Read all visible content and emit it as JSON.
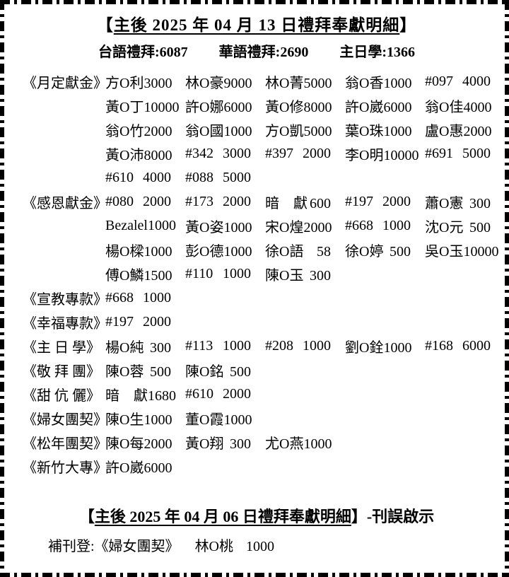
{
  "report": {
    "title": {
      "open": "【",
      "text": "主後 2025 年 04 月 13 日禮拜奉獻明細",
      "close": "】"
    },
    "stats": [
      {
        "label": "台語禮拜",
        "value": "6087"
      },
      {
        "label": "華語禮拜",
        "value": "2690"
      },
      {
        "label": "主日學",
        "value": "1366"
      }
    ],
    "rows": [
      {
        "label": "《月定獻金》",
        "entries": [
          {
            "name": "方O利",
            "amount": "3000"
          },
          {
            "name": "林O豪",
            "amount": "9000"
          },
          {
            "name": "林O菁",
            "amount": "5000"
          },
          {
            "name": "翁O香",
            "amount": "1000"
          },
          {
            "name": "#097",
            "amount": "4000"
          }
        ]
      },
      {
        "label": "",
        "entries": [
          {
            "name": "黃O丁",
            "amount": "10000"
          },
          {
            "name": "許O娜",
            "amount": "6000"
          },
          {
            "name": "黃O修",
            "amount": "8000"
          },
          {
            "name": "許O崴",
            "amount": "6000"
          },
          {
            "name": "翁O佳",
            "amount": "4000"
          }
        ]
      },
      {
        "label": "",
        "entries": [
          {
            "name": "翁O竹",
            "amount": "2000"
          },
          {
            "name": "翁O國",
            "amount": "1000"
          },
          {
            "name": "方O凱",
            "amount": "5000"
          },
          {
            "name": "葉O珠",
            "amount": "1000"
          },
          {
            "name": "盧O惠",
            "amount": "2000"
          }
        ]
      },
      {
        "label": "",
        "entries": [
          {
            "name": "黃O沛",
            "amount": "8000"
          },
          {
            "name": "#342",
            "amount": "3000"
          },
          {
            "name": "#397",
            "amount": "2000"
          },
          {
            "name": "李O明",
            "amount": "10000"
          },
          {
            "name": "#691",
            "amount": "5000"
          }
        ]
      },
      {
        "label": "",
        "entries": [
          {
            "name": "#610",
            "amount": "4000"
          },
          {
            "name": "#088",
            "amount": "5000"
          }
        ]
      },
      {
        "label": "《感恩獻金》",
        "entries": [
          {
            "name": "#080",
            "amount": "2000"
          },
          {
            "name": "#173",
            "amount": "2000"
          },
          {
            "name": "暗　獻",
            "amount": "600"
          },
          {
            "name": "#197",
            "amount": "2000"
          },
          {
            "name": "蕭O憲",
            "amount": "300"
          }
        ]
      },
      {
        "label": "",
        "entries": [
          {
            "name": "Bezalel",
            "amount": "1000"
          },
          {
            "name": "黃O姿",
            "amount": "1000"
          },
          {
            "name": "宋O煌",
            "amount": "2000"
          },
          {
            "name": "#668",
            "amount": "1000"
          },
          {
            "name": "沈O元",
            "amount": "500"
          }
        ]
      },
      {
        "label": "",
        "entries": [
          {
            "name": "楊O樑",
            "amount": "1000"
          },
          {
            "name": "彭O德",
            "amount": "1000"
          },
          {
            "name": "徐O語",
            "amount": "58"
          },
          {
            "name": "徐O婷",
            "amount": "500"
          },
          {
            "name": "吳O玉",
            "amount": "10000"
          }
        ]
      },
      {
        "label": "",
        "entries": [
          {
            "name": "傅O鱗",
            "amount": "1500"
          },
          {
            "name": "#110",
            "amount": "1000"
          },
          {
            "name": "陳O玉",
            "amount": "300"
          }
        ]
      },
      {
        "label": "《宣教專款》",
        "entries": [
          {
            "name": "#668",
            "amount": "1000"
          }
        ]
      },
      {
        "label": "《幸福專款》",
        "entries": [
          {
            "name": "#197",
            "amount": "2000"
          }
        ]
      },
      {
        "label": "《主 日 學》",
        "entries": [
          {
            "name": "楊O純",
            "amount": "300"
          },
          {
            "name": "#113",
            "amount": "1000"
          },
          {
            "name": "#208",
            "amount": "1000"
          },
          {
            "name": "劉O銓",
            "amount": "1000"
          },
          {
            "name": "#168",
            "amount": "6000"
          }
        ]
      },
      {
        "label": "《敬 拜 團》",
        "entries": [
          {
            "name": "陳O蓉",
            "amount": "500"
          },
          {
            "name": "陳O銘",
            "amount": "500"
          }
        ]
      },
      {
        "label": "《甜 伉 儷》",
        "entries": [
          {
            "name": "暗　獻",
            "amount": "1680"
          },
          {
            "name": "#610",
            "amount": "2000"
          }
        ]
      },
      {
        "label": "《婦女團契》",
        "entries": [
          {
            "name": "陳O生",
            "amount": "1000"
          },
          {
            "name": "董O霞",
            "amount": "1000"
          }
        ]
      },
      {
        "label": "《松年團契》",
        "entries": [
          {
            "name": "陳O每",
            "amount": "2000"
          },
          {
            "name": "黃O翔",
            "amount": "300"
          },
          {
            "name": "尤O燕",
            "amount": "1000"
          }
        ]
      },
      {
        "label": "《新竹大專》",
        "entries": [
          {
            "name": "許O崴",
            "amount": "6000"
          }
        ]
      }
    ]
  },
  "erratum": {
    "title": {
      "open": "【",
      "text": "主後 2025 年 04 月 06 日禮拜奉獻明細",
      "close": "】",
      "suffix": "-刊誤啟示"
    },
    "entry": {
      "prefix": "補刊登:",
      "category": "《婦女團契》",
      "name": "林O桃",
      "amount": "1000"
    }
  },
  "colors": {
    "ink": "#000000",
    "paper": "#ffffff"
  }
}
